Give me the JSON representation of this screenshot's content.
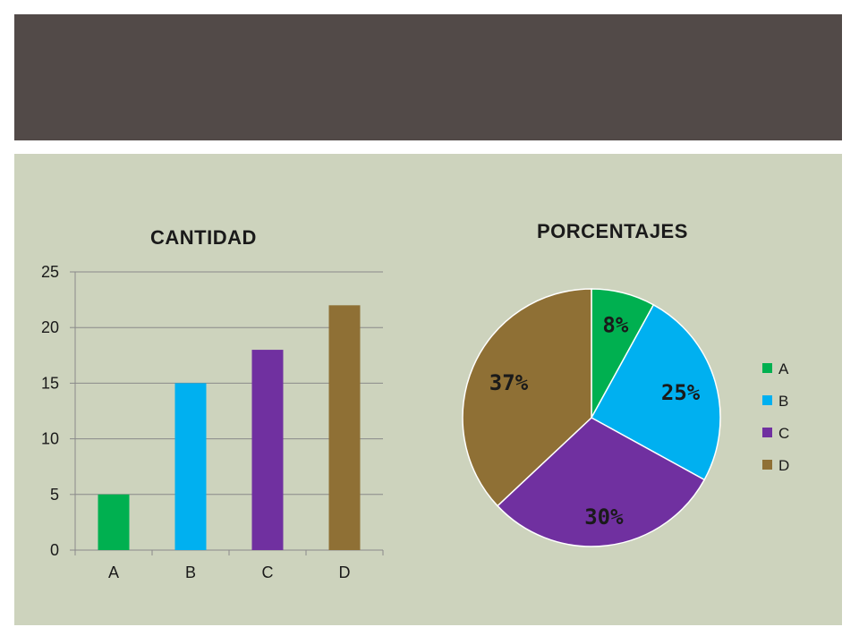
{
  "chart_data": [
    {
      "type": "bar",
      "title": "CANTIDAD",
      "categories": [
        "A",
        "B",
        "C",
        "D"
      ],
      "values": [
        5,
        15,
        18,
        22
      ],
      "colors": [
        "#00b050",
        "#00b0f0",
        "#7030a0",
        "#8f7035"
      ],
      "ylim": [
        0,
        25
      ],
      "yticks": [
        "0",
        "5",
        "10",
        "15",
        "20",
        "25"
      ],
      "grid": true,
      "legend": "none"
    },
    {
      "type": "pie",
      "title": "PORCENTAJES",
      "categories": [
        "A",
        "B",
        "C",
        "D"
      ],
      "values": [
        8,
        25,
        30,
        37
      ],
      "labels": [
        "8%",
        "25%",
        "30%",
        "37%"
      ],
      "colors": [
        "#00b050",
        "#00b0f0",
        "#7030a0",
        "#8f7035"
      ],
      "legend": "right"
    }
  ]
}
